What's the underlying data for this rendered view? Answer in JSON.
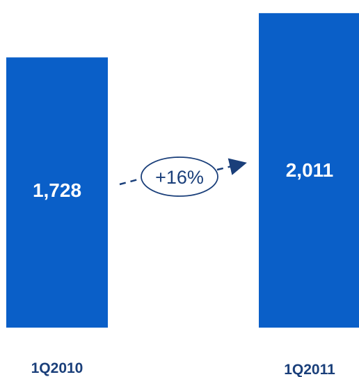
{
  "chart_data": {
    "type": "bar",
    "categories": [
      "1Q2010",
      "1Q2011"
    ],
    "values": [
      1728,
      2011
    ],
    "value_labels": [
      "1,728",
      "2,011"
    ],
    "growth_annotation": "+16%",
    "title": "",
    "xlabel": "",
    "ylabel": "",
    "ylim": [
      0,
      2095
    ],
    "grid": false,
    "bar_color": "#0a5fc8",
    "annotation_color": "#1a3f7a"
  }
}
